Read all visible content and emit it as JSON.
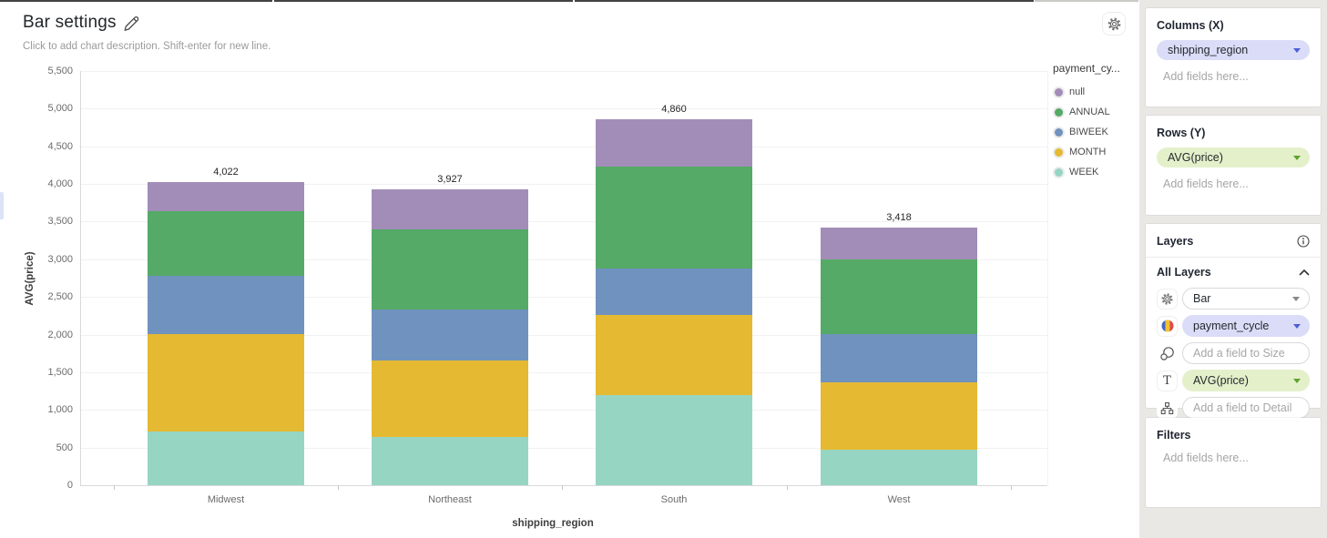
{
  "page": {
    "title": "Bar settings",
    "description_placeholder": "Click to add chart description. Shift-enter for new line."
  },
  "chart_data": {
    "type": "bar",
    "stacked": true,
    "title": "Bar settings",
    "xlabel": "shipping_region",
    "ylabel": "AVG(price)",
    "ylim": [
      0,
      5500
    ],
    "yticks": [
      "0",
      "500",
      "1,000",
      "1,500",
      "2,000",
      "2,500",
      "3,000",
      "3,500",
      "4,000",
      "4,500",
      "5,000",
      "5,500"
    ],
    "categories": [
      "Midwest",
      "Northeast",
      "South",
      "West"
    ],
    "series": [
      {
        "name": "WEEK",
        "color": "#97d5c3",
        "values": [
          714,
          637,
          1199,
          472
        ]
      },
      {
        "name": "MONTH",
        "color": "#e5b932",
        "values": [
          1291,
          1014,
          1057,
          896
        ]
      },
      {
        "name": "BIWEEK",
        "color": "#7092be",
        "values": [
          780,
          686,
          626,
          637
        ]
      },
      {
        "name": "ANNUAL",
        "color": "#54aa66",
        "values": [
          855,
          1062,
          1351,
          990
        ]
      },
      {
        "name": "null",
        "color": "#a28db8",
        "values": [
          382,
          528,
          627,
          423
        ]
      }
    ],
    "totals": [
      4022,
      3927,
      4860,
      3418
    ],
    "total_labels": [
      "4,022",
      "3,927",
      "4,860",
      "3,418"
    ],
    "grid": true,
    "legend": {
      "title": "payment_cy...",
      "position": "right",
      "items": [
        "null",
        "ANNUAL",
        "BIWEEK",
        "MONTH",
        "WEEK"
      ]
    }
  },
  "sidebar": {
    "columns_section": {
      "title": "Columns (X)",
      "field": "shipping_region",
      "placeholder": "Add fields here..."
    },
    "rows_section": {
      "title": "Rows (Y)",
      "field": "AVG(price)",
      "placeholder": "Add fields here..."
    },
    "layers_section": {
      "title": "Layers",
      "group_label": "All Layers",
      "mark_type": "Bar",
      "color_field": "payment_cycle",
      "size_placeholder": "Add a field to Size",
      "text_field": "AVG(price)",
      "detail_placeholder": "Add a field to Detail"
    },
    "filters_section": {
      "title": "Filters",
      "placeholder": "Add fields here..."
    }
  },
  "colors": {
    "pill_purple_bg": "#dbdcf8",
    "pill_purple_caret": "#4c5fd5",
    "pill_green_bg": "#e4f0ca",
    "pill_green_caret": "#5fa32c"
  }
}
